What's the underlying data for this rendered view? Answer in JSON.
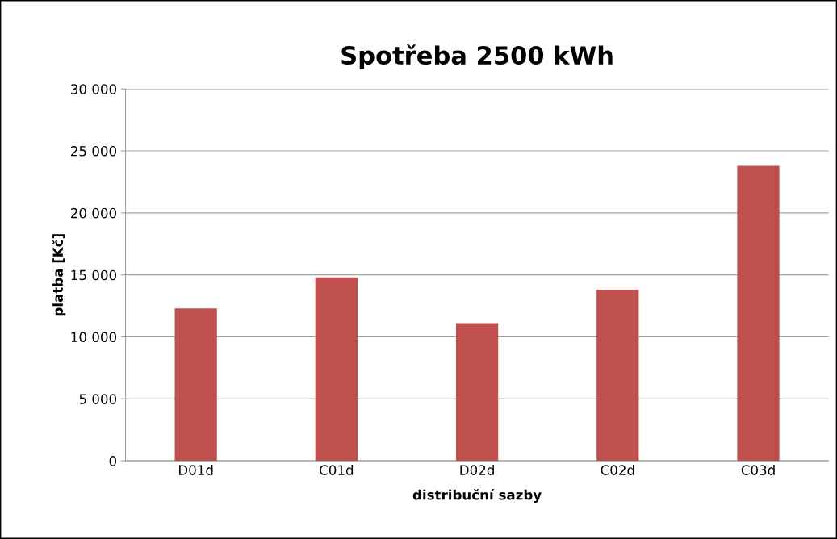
{
  "chart_data": {
    "type": "bar",
    "title": "Spotřeba 2500 kWh",
    "xlabel": "distribuční sazby",
    "ylabel": "platba [Kč]",
    "categories": [
      "D01d",
      "C01d",
      "D02d",
      "C02d",
      "C03d"
    ],
    "values": [
      12300,
      14800,
      11100,
      13800,
      23800
    ],
    "color": "#c0504d",
    "ylim": [
      0,
      30000
    ],
    "yticks": [
      0,
      {
        "value": 5000,
        "label": "5 000"
      },
      {
        "value": 10000,
        "label": "10 000"
      },
      {
        "value": 15000,
        "label": "15 000"
      },
      {
        "value": 20000,
        "label": "20 000"
      },
      {
        "value": 25000,
        "label": "25 000"
      },
      {
        "value": 30000,
        "label": "30 000"
      }
    ],
    "grid": "y",
    "legend": false
  }
}
